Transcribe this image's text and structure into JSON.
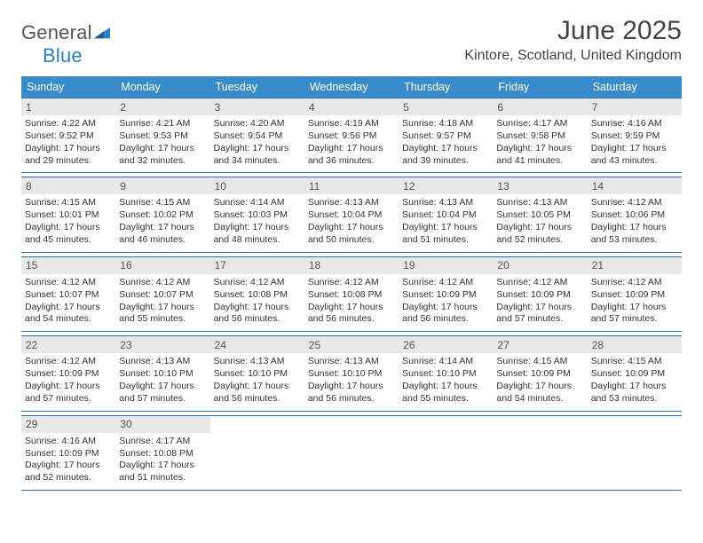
{
  "brand": {
    "word1": "General",
    "word2": "Blue",
    "icon_color": "#2d7fc3",
    "text_color_gray": "#666666"
  },
  "header": {
    "title": "June 2025",
    "location": "Kintore, Scotland, United Kingdom"
  },
  "colors": {
    "header_bar": "#3a8bc9",
    "row_border": "#2d6fa3",
    "daynum_bg": "#e8e8e8",
    "text": "#333333"
  },
  "weekdays": [
    "Sunday",
    "Monday",
    "Tuesday",
    "Wednesday",
    "Thursday",
    "Friday",
    "Saturday"
  ],
  "weeks": [
    [
      {
        "num": "1",
        "sunrise": "4:22 AM",
        "sunset": "9:52 PM",
        "daylight": "17 hours and 29 minutes."
      },
      {
        "num": "2",
        "sunrise": "4:21 AM",
        "sunset": "9:53 PM",
        "daylight": "17 hours and 32 minutes."
      },
      {
        "num": "3",
        "sunrise": "4:20 AM",
        "sunset": "9:54 PM",
        "daylight": "17 hours and 34 minutes."
      },
      {
        "num": "4",
        "sunrise": "4:19 AM",
        "sunset": "9:56 PM",
        "daylight": "17 hours and 36 minutes."
      },
      {
        "num": "5",
        "sunrise": "4:18 AM",
        "sunset": "9:57 PM",
        "daylight": "17 hours and 39 minutes."
      },
      {
        "num": "6",
        "sunrise": "4:17 AM",
        "sunset": "9:58 PM",
        "daylight": "17 hours and 41 minutes."
      },
      {
        "num": "7",
        "sunrise": "4:16 AM",
        "sunset": "9:59 PM",
        "daylight": "17 hours and 43 minutes."
      }
    ],
    [
      {
        "num": "8",
        "sunrise": "4:15 AM",
        "sunset": "10:01 PM",
        "daylight": "17 hours and 45 minutes."
      },
      {
        "num": "9",
        "sunrise": "4:15 AM",
        "sunset": "10:02 PM",
        "daylight": "17 hours and 46 minutes."
      },
      {
        "num": "10",
        "sunrise": "4:14 AM",
        "sunset": "10:03 PM",
        "daylight": "17 hours and 48 minutes."
      },
      {
        "num": "11",
        "sunrise": "4:13 AM",
        "sunset": "10:04 PM",
        "daylight": "17 hours and 50 minutes."
      },
      {
        "num": "12",
        "sunrise": "4:13 AM",
        "sunset": "10:04 PM",
        "daylight": "17 hours and 51 minutes."
      },
      {
        "num": "13",
        "sunrise": "4:13 AM",
        "sunset": "10:05 PM",
        "daylight": "17 hours and 52 minutes."
      },
      {
        "num": "14",
        "sunrise": "4:12 AM",
        "sunset": "10:06 PM",
        "daylight": "17 hours and 53 minutes."
      }
    ],
    [
      {
        "num": "15",
        "sunrise": "4:12 AM",
        "sunset": "10:07 PM",
        "daylight": "17 hours and 54 minutes."
      },
      {
        "num": "16",
        "sunrise": "4:12 AM",
        "sunset": "10:07 PM",
        "daylight": "17 hours and 55 minutes."
      },
      {
        "num": "17",
        "sunrise": "4:12 AM",
        "sunset": "10:08 PM",
        "daylight": "17 hours and 56 minutes."
      },
      {
        "num": "18",
        "sunrise": "4:12 AM",
        "sunset": "10:08 PM",
        "daylight": "17 hours and 56 minutes."
      },
      {
        "num": "19",
        "sunrise": "4:12 AM",
        "sunset": "10:09 PM",
        "daylight": "17 hours and 56 minutes."
      },
      {
        "num": "20",
        "sunrise": "4:12 AM",
        "sunset": "10:09 PM",
        "daylight": "17 hours and 57 minutes."
      },
      {
        "num": "21",
        "sunrise": "4:12 AM",
        "sunset": "10:09 PM",
        "daylight": "17 hours and 57 minutes."
      }
    ],
    [
      {
        "num": "22",
        "sunrise": "4:12 AM",
        "sunset": "10:09 PM",
        "daylight": "17 hours and 57 minutes."
      },
      {
        "num": "23",
        "sunrise": "4:13 AM",
        "sunset": "10:10 PM",
        "daylight": "17 hours and 57 minutes."
      },
      {
        "num": "24",
        "sunrise": "4:13 AM",
        "sunset": "10:10 PM",
        "daylight": "17 hours and 56 minutes."
      },
      {
        "num": "25",
        "sunrise": "4:13 AM",
        "sunset": "10:10 PM",
        "daylight": "17 hours and 56 minutes."
      },
      {
        "num": "26",
        "sunrise": "4:14 AM",
        "sunset": "10:10 PM",
        "daylight": "17 hours and 55 minutes."
      },
      {
        "num": "27",
        "sunrise": "4:15 AM",
        "sunset": "10:09 PM",
        "daylight": "17 hours and 54 minutes."
      },
      {
        "num": "28",
        "sunrise": "4:15 AM",
        "sunset": "10:09 PM",
        "daylight": "17 hours and 53 minutes."
      }
    ],
    [
      {
        "num": "29",
        "sunrise": "4:16 AM",
        "sunset": "10:09 PM",
        "daylight": "17 hours and 52 minutes."
      },
      {
        "num": "30",
        "sunrise": "4:17 AM",
        "sunset": "10:08 PM",
        "daylight": "17 hours and 51 minutes."
      },
      null,
      null,
      null,
      null,
      null
    ]
  ],
  "labels": {
    "sunrise": "Sunrise:",
    "sunset": "Sunset:",
    "daylight": "Daylight:"
  }
}
